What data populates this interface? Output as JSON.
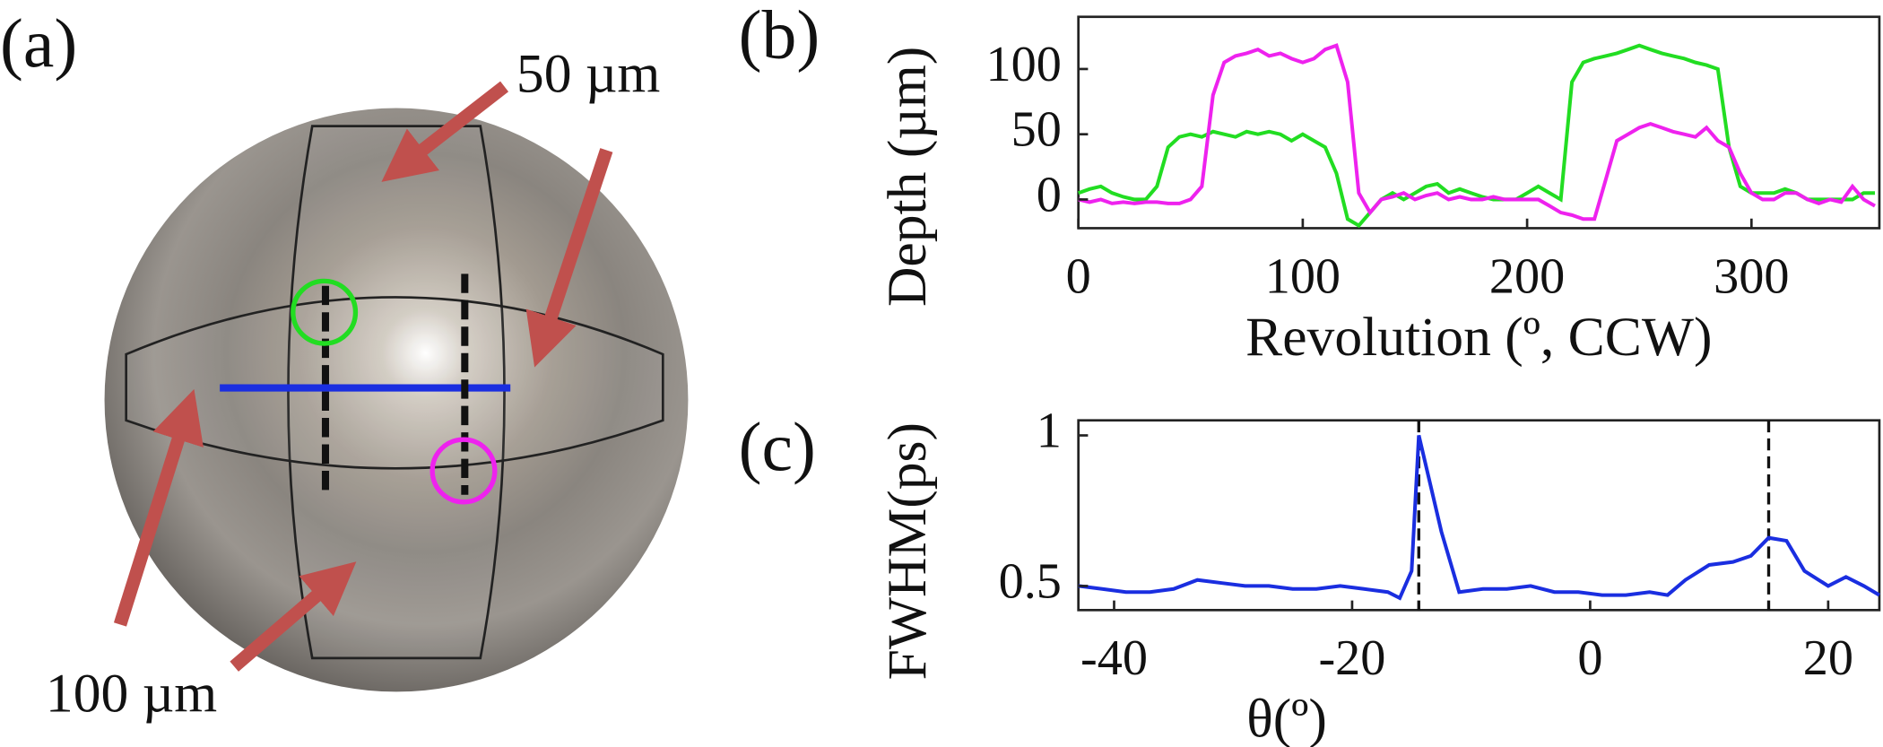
{
  "panel_a": {
    "label": "(a)",
    "annotations": [
      "50 µm",
      "100 µm"
    ]
  },
  "chart_data": [
    {
      "type": "line",
      "panel": "(b)",
      "ylabel": "Depth (µm)",
      "xlabel": "Revolution (º, CCW)",
      "xlim": [
        0,
        357
      ],
      "ylim": [
        -22,
        140
      ],
      "xticks": [
        0,
        100,
        200,
        300
      ],
      "yticks": [
        0,
        50,
        100
      ],
      "box": true,
      "x": [
        0,
        5,
        10,
        15,
        20,
        25,
        30,
        35,
        40,
        45,
        50,
        55,
        60,
        65,
        70,
        75,
        80,
        85,
        90,
        95,
        100,
        105,
        110,
        115,
        120,
        125,
        130,
        135,
        140,
        145,
        150,
        155,
        160,
        165,
        170,
        175,
        180,
        185,
        190,
        195,
        200,
        205,
        210,
        215,
        220,
        225,
        230,
        235,
        240,
        245,
        250,
        255,
        260,
        265,
        270,
        275,
        280,
        285,
        290,
        295,
        300,
        305,
        310,
        315,
        320,
        325,
        330,
        335,
        340,
        345,
        350,
        355
      ],
      "series": [
        {
          "color": "#22dd22",
          "values": [
            5,
            8,
            10,
            5,
            2,
            0,
            0,
            10,
            40,
            48,
            50,
            48,
            52,
            50,
            48,
            52,
            50,
            52,
            50,
            45,
            50,
            45,
            40,
            20,
            -15,
            -20,
            -10,
            0,
            5,
            0,
            5,
            10,
            12,
            5,
            8,
            5,
            2,
            0,
            0,
            0,
            5,
            10,
            5,
            0,
            90,
            105,
            108,
            110,
            112,
            115,
            118,
            115,
            112,
            110,
            108,
            105,
            103,
            100,
            40,
            10,
            5,
            5,
            5,
            8,
            5,
            0,
            0,
            0,
            0,
            0,
            5,
            5
          ]
        },
        {
          "color": "#ee22ee",
          "values": [
            0,
            -2,
            0,
            -3,
            -2,
            -3,
            -2,
            -2,
            -3,
            -3,
            0,
            10,
            80,
            105,
            110,
            112,
            115,
            110,
            112,
            108,
            105,
            108,
            115,
            118,
            90,
            5,
            -10,
            0,
            2,
            5,
            0,
            3,
            5,
            0,
            2,
            0,
            0,
            2,
            0,
            0,
            0,
            0,
            -5,
            -10,
            -12,
            -15,
            -15,
            15,
            45,
            50,
            55,
            58,
            55,
            52,
            50,
            48,
            55,
            45,
            40,
            20,
            5,
            0,
            0,
            5,
            5,
            0,
            -3,
            0,
            -2,
            10,
            0,
            -5
          ]
        }
      ]
    },
    {
      "type": "line",
      "panel": "(c)",
      "ylabel": "FWHM(ps)",
      "xlabel": "θ(º)",
      "xlim": [
        -43,
        24.3
      ],
      "ylim": [
        0.42,
        1.05
      ],
      "xticks": [
        -40,
        -20,
        0,
        20
      ],
      "yticks": [
        0.5,
        1
      ],
      "box": true,
      "reference_lines": [
        -14.4,
        15
      ],
      "x": [
        -43,
        -41,
        -39,
        -37,
        -35,
        -33,
        -31,
        -29,
        -27,
        -25,
        -23,
        -21,
        -19,
        -17,
        -16,
        -15,
        -14.4,
        -12.5,
        -11,
        -9,
        -7,
        -5,
        -3,
        -1,
        1,
        3,
        5,
        6.5,
        8,
        10,
        12,
        13.5,
        15,
        16.5,
        18,
        20,
        21.5,
        23,
        24.3
      ],
      "color": "#1a2ee0",
      "values": [
        0.5,
        0.49,
        0.48,
        0.48,
        0.49,
        0.52,
        0.51,
        0.5,
        0.5,
        0.49,
        0.49,
        0.5,
        0.49,
        0.48,
        0.46,
        0.55,
        1.0,
        0.68,
        0.48,
        0.49,
        0.49,
        0.5,
        0.48,
        0.48,
        0.47,
        0.47,
        0.48,
        0.47,
        0.52,
        0.57,
        0.58,
        0.6,
        0.66,
        0.65,
        0.55,
        0.5,
        0.53,
        0.5,
        0.47
      ]
    }
  ]
}
